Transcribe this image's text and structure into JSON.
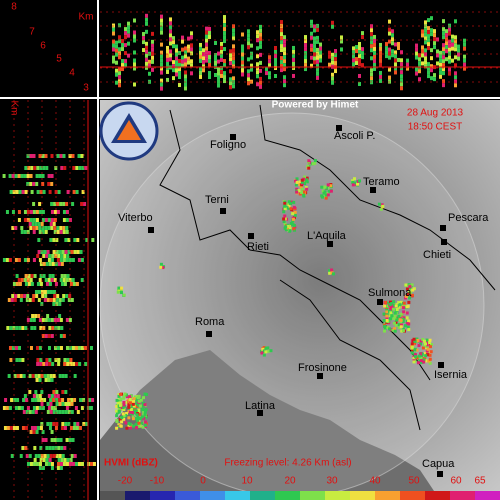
{
  "header": {
    "powered_by": "Powered by Himet",
    "date": "28 Aug 2013",
    "time": "18:50 CEST"
  },
  "profile": {
    "unit_top": "Km",
    "unit_side": "Km",
    "levels": [
      8,
      7,
      6,
      5,
      4,
      3
    ]
  },
  "cities": [
    {
      "name": "Foligno"
    },
    {
      "name": "Ascoli P."
    },
    {
      "name": "Teramo"
    },
    {
      "name": "Pescara"
    },
    {
      "name": "Terni"
    },
    {
      "name": "Viterbo"
    },
    {
      "name": "Rieti"
    },
    {
      "name": "L'Aquila"
    },
    {
      "name": "Chieti"
    },
    {
      "name": "Sulmona"
    },
    {
      "name": "Roma"
    },
    {
      "name": "Isernia"
    },
    {
      "name": "Frosinone"
    },
    {
      "name": "Latina"
    },
    {
      "name": "Capua"
    }
  ],
  "legend": {
    "title": "HVMI (dBZ)",
    "freezing_level": "Freezing level: 4.26 Km (asl)",
    "ticks": [
      -20,
      -10,
      0,
      10,
      20,
      30,
      40,
      50,
      60,
      65
    ],
    "colors": [
      "#555555",
      "#1a1a6e",
      "#2626b0",
      "#3a5ad8",
      "#3f8fe8",
      "#38c8e8",
      "#20b08a",
      "#2ec850",
      "#7ee04a",
      "#c8ec40",
      "#f0e040",
      "#f8a030",
      "#f05020",
      "#d01818",
      "#e02070",
      "#d020c0"
    ]
  }
}
